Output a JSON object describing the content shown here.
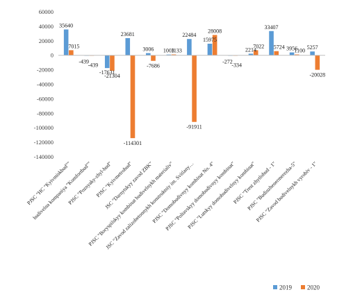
{
  "chart_data": {
    "type": "bar",
    "categories": [
      "PJSC \"HC \"Kyivmiskbud\"\"",
      "budivelna kompaniya \"Komfortbud\"\"",
      "PJSC \"Poznyaky-zhyl-bud\"",
      "PJSC \"Kyivmetrobud\"",
      "JSC \"Darnytskyy zavod ZBK\"",
      "PJSC \"Boryspilskyy kombinat budivelnykh materialiv\"",
      "JSC \"Zavod zalizobetonnykh konstruktsiy im. Svitlany…",
      "PJSC \"Domobudivnyy kombinat No. 4\"",
      "PJSC \"Poltavskyy domobudivnyy kombinat\"",
      "PJSC \"Lutskyy domobudivelnyy kombinat\"",
      "PJSC \"Trest zhytlobud - 1\"",
      "PJSC \"Budinzhenermerezha-5\"",
      "PJSC \"Zavod budivelnykh vyrobiv - 1\""
    ],
    "series": [
      {
        "name": "2019",
        "color": "#5b9bd5",
        "values": [
          35640,
          -439,
          -17631,
          23681,
          3006,
          1003,
          22484,
          15975,
          -272,
          2214,
          33407,
          3956,
          5257
        ]
      },
      {
        "name": "2020",
        "color": "#ed7d31",
        "values": [
          7015,
          -439,
          -21304,
          -114301,
          -7686,
          1133,
          -91911,
          28008,
          -334,
          7022,
          5724,
          1100,
          -20028
        ]
      }
    ],
    "ylim": [
      -140000,
      60000
    ],
    "yticks": [
      60000,
      40000,
      20000,
      0,
      -20000,
      -40000,
      -60000,
      -80000,
      -100000,
      -120000,
      -140000
    ],
    "data_labels": {
      "2019": [
        "35640",
        "-439",
        "-17631",
        "23681",
        "3006",
        "1003",
        "22484",
        "15975",
        "-272",
        "2214",
        "33407",
        "3956",
        "5257"
      ],
      "2020": [
        "7015",
        "-439",
        "-21304",
        "-114301",
        "-7686",
        "1133",
        "-91911",
        "28008",
        "-334",
        "7022",
        "5724",
        "1100",
        "-20028"
      ]
    },
    "legend": {
      "position": "bottom-right",
      "entries": [
        "2019",
        "2020"
      ]
    },
    "grid": false,
    "title": "",
    "xlabel": "",
    "ylabel": ""
  }
}
